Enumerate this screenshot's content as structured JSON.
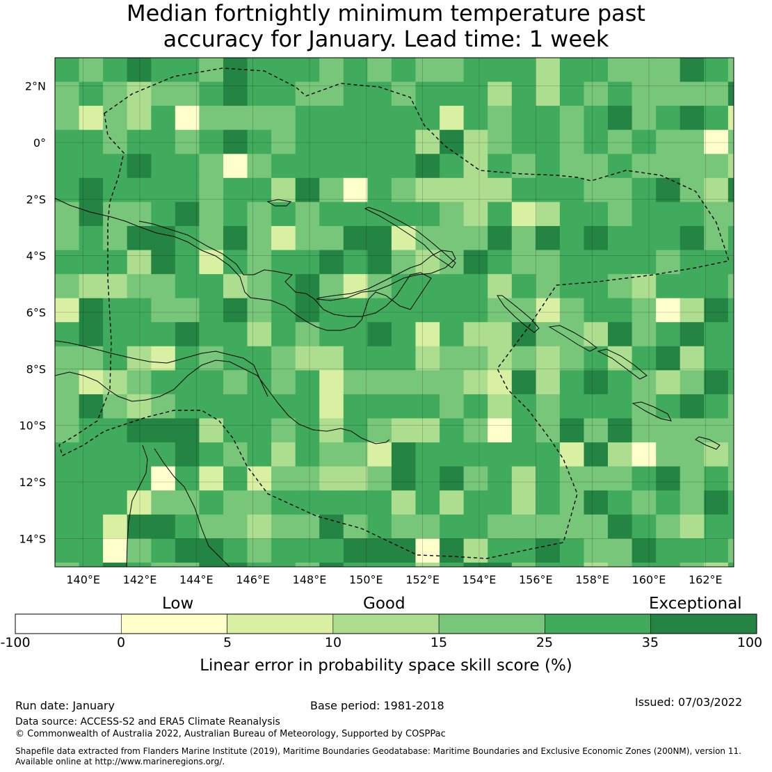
{
  "title_line1": "Median fortnightly minimum temperature past",
  "title_line2": "accuracy for January. Lead time: 1 week",
  "map": {
    "lon_ticks": [
      "140°E",
      "142°E",
      "144°E",
      "146°E",
      "148°E",
      "150°E",
      "152°E",
      "154°E",
      "156°E",
      "158°E",
      "160°E",
      "162°E"
    ],
    "lat_ticks": [
      "2°N",
      "0°",
      "2°S",
      "4°S",
      "6°S",
      "8°S",
      "10°S",
      "12°S",
      "14°S"
    ],
    "lon_range": [
      139,
      163
    ],
    "lat_range": [
      -15,
      3
    ],
    "grid_resolution_deg": 0.85,
    "field": "Linear error in probability space skill score (%)",
    "dominant_class": "25 to 35"
  },
  "colorbar": {
    "categories": [
      {
        "label": "Low"
      },
      {
        "label": "Good"
      },
      {
        "label": "Exceptional"
      }
    ],
    "bounds": [
      "-100",
      "0",
      "5",
      "10",
      "15",
      "25",
      "35",
      "100"
    ],
    "colors": [
      "#ffffff",
      "#ffffcc",
      "#d9f0a3",
      "#addd8e",
      "#78c679",
      "#41ab5d",
      "#238443"
    ],
    "title": "Linear error in probability space skill score (%)"
  },
  "footer": {
    "run_date": "Run date: January",
    "base_period": "Base period: 1981-2018",
    "issued": "Issued: 07/03/2022",
    "data_source": "Data source: ACCESS-S2 and ERA5 Climate Reanalysis",
    "copyright": "© Commonwealth of Australia 2022, Australian Bureau of Meteorology, Supported by COSPPac",
    "shapefile_line1": "Shapefile data extracted from Flanders Marine Institute (2019), Maritime Boundaries Geodatabase: Maritime Boundaries and Exclusive Economic Zones (200NM), version 11.",
    "shapefile_line2": "Available online at http://www.marineregions.org/."
  }
}
